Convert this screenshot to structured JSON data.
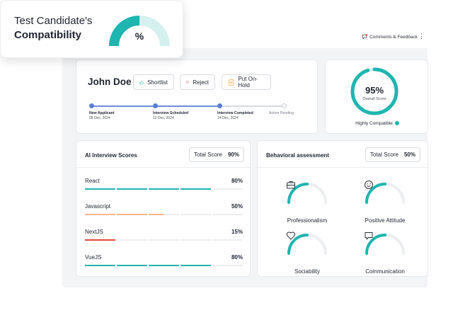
{
  "header": {
    "feedback_label": "Comments & Feedback",
    "menu_icon": "kebab-menu-icon",
    "feedback_icon": "chat-heart-icon"
  },
  "candidate": {
    "name": "John Doe",
    "actions": [
      {
        "label": "Shortlist",
        "icon": "thumbs-up-icon",
        "color": "#1fb5b0"
      },
      {
        "label": "Reject",
        "icon": "thumbs-down-icon",
        "color": "#e0463a"
      },
      {
        "label": "Put On-Hold",
        "icon": "pause-icon",
        "color": "#f0a035"
      }
    ],
    "timeline": [
      {
        "label": "New Applicant",
        "date": "08 Dec, 2024",
        "done": true
      },
      {
        "label": "Interview Scheduled",
        "date": "12 Dec, 2024",
        "done": true
      },
      {
        "label": "Interview Completed",
        "date": "14 Dec, 2024",
        "done": true
      },
      {
        "label": "Action Pending",
        "date": "",
        "done": false
      }
    ]
  },
  "overall": {
    "value": "95%",
    "fraction": 0.95,
    "label": "Overall Score",
    "status": "Highly Compatible"
  },
  "ai_scores": {
    "title": "AI Interview Scores",
    "total_label": "Total Score",
    "total_value": "90%",
    "skills": [
      {
        "name": "React",
        "value": "80%",
        "fraction": 0.8,
        "color": "#1fb5b0"
      },
      {
        "name": "Javascript",
        "value": "50%",
        "fraction": 0.5,
        "color": "#f5b88a"
      },
      {
        "name": "NextJS",
        "value": "15%",
        "fraction": 0.15,
        "color": "#e0463a"
      },
      {
        "name": "VueJS",
        "value": "80%",
        "fraction": 0.8,
        "color": "#1fb5b0"
      }
    ]
  },
  "behavioral": {
    "title": "Behavioral assessment",
    "total_label": "Total Score",
    "total_value": "50%",
    "traits": [
      {
        "label": "Professionalism",
        "icon": "briefcase-icon",
        "fraction": 0.5
      },
      {
        "label": "Positive Attitude",
        "icon": "smiley-icon",
        "fraction": 0.5
      },
      {
        "label": "Sociability",
        "icon": "heart-icon",
        "fraction": 0.5
      },
      {
        "label": "Communication",
        "icon": "speech-bubble-icon",
        "fraction": 0.5
      }
    ]
  },
  "compat_card": {
    "line1": "Test Candidate's",
    "line2": "Compatibility",
    "value": "%",
    "fraction": 0.5
  },
  "colors": {
    "teal": "#1fb5b0",
    "teal_light": "#d4f0ef",
    "blue": "#5b7fd6",
    "track": "#eceef1"
  }
}
